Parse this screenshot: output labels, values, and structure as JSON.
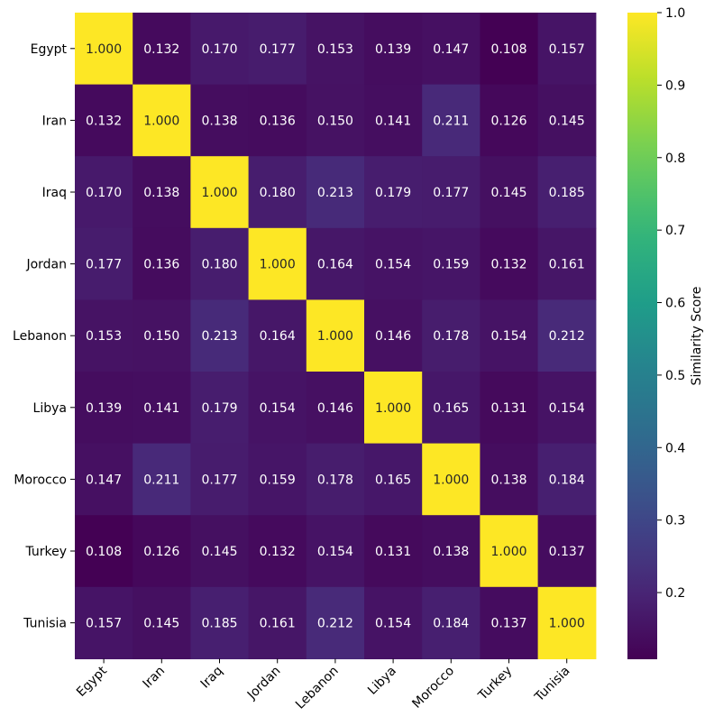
{
  "chart_data": {
    "type": "heatmap",
    "row_labels": [
      "Egypt",
      "Iran",
      "Iraq",
      "Jordan",
      "Lebanon",
      "Libya",
      "Morocco",
      "Turkey",
      "Tunisia"
    ],
    "col_labels": [
      "Egypt",
      "Iran",
      "Iraq",
      "Jordan",
      "Lebanon",
      "Libya",
      "Morocco",
      "Turkey",
      "Tunisia"
    ],
    "values": [
      [
        1.0,
        0.132,
        0.17,
        0.177,
        0.153,
        0.139,
        0.147,
        0.108,
        0.157
      ],
      [
        0.132,
        1.0,
        0.138,
        0.136,
        0.15,
        0.141,
        0.211,
        0.126,
        0.145
      ],
      [
        0.17,
        0.138,
        1.0,
        0.18,
        0.213,
        0.179,
        0.177,
        0.145,
        0.185
      ],
      [
        0.177,
        0.136,
        0.18,
        1.0,
        0.164,
        0.154,
        0.159,
        0.132,
        0.161
      ],
      [
        0.153,
        0.15,
        0.213,
        0.164,
        1.0,
        0.146,
        0.178,
        0.154,
        0.212
      ],
      [
        0.139,
        0.141,
        0.179,
        0.154,
        0.146,
        1.0,
        0.165,
        0.131,
        0.154
      ],
      [
        0.147,
        0.211,
        0.177,
        0.159,
        0.178,
        0.165,
        1.0,
        0.138,
        0.184
      ],
      [
        0.108,
        0.126,
        0.145,
        0.132,
        0.154,
        0.131,
        0.138,
        1.0,
        0.137
      ],
      [
        0.157,
        0.145,
        0.185,
        0.161,
        0.212,
        0.154,
        0.184,
        0.137,
        1.0
      ]
    ],
    "value_format": "0.000",
    "colormap": "viridis",
    "vmin": 0.108,
    "vmax": 1.0,
    "colorbar": {
      "label": "Similarity Score",
      "ticks": [
        "0.2",
        "0.3",
        "0.4",
        "0.5",
        "0.6",
        "0.7",
        "0.8",
        "0.9",
        "1.0"
      ]
    },
    "title": "",
    "xlabel": "",
    "ylabel": ""
  }
}
